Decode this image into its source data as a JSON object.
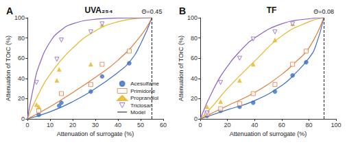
{
  "chart_data": [
    {
      "type": "scatter",
      "panel": "A",
      "title": "UVA₂₅₄",
      "x_label": "Attenuation of surrogate (%)",
      "y_label": "Attenuation of TOrC (%)",
      "xlim": [
        0,
        60
      ],
      "xticks": [
        0,
        10,
        20,
        30,
        40,
        50,
        60
      ],
      "ylim": [
        0,
        100
      ],
      "yticks": [
        0,
        20,
        40,
        60,
        80,
        100
      ],
      "grid": false,
      "legend": "lower right",
      "annotations": [
        {
          "text": "Θ=0.45",
          "x": 55
        }
      ],
      "series": [
        {
          "name": "Acesulfame",
          "color": "#3b6fc2",
          "marker": "circle",
          "x": [
            5,
            14,
            15,
            28,
            33,
            45
          ],
          "values": [
            4,
            13,
            16,
            27,
            42,
            55
          ],
          "model_x": [
            0,
            10,
            20,
            30,
            40,
            45,
            50,
            55
          ],
          "model_values": [
            0,
            7,
            17,
            30,
            46,
            56,
            74,
            100
          ]
        },
        {
          "name": "Primidone",
          "color": "#e07b39",
          "marker": "square_open",
          "x": [
            5,
            15,
            28,
            33,
            45
          ],
          "values": [
            8,
            25,
            34,
            54,
            67
          ],
          "model_x": [
            0,
            10,
            20,
            30,
            40,
            50,
            55
          ],
          "model_values": [
            0,
            12,
            26,
            41,
            58,
            82,
            100
          ]
        },
        {
          "name": "Propranolol",
          "color": "#e6b422",
          "marker": "triangle",
          "x": [
            4,
            5,
            13,
            14,
            28,
            33
          ],
          "values": [
            14,
            12,
            38,
            49,
            54,
            93
          ],
          "model_x": [
            0,
            5,
            10,
            20,
            30,
            40,
            50,
            55
          ],
          "model_values": [
            0,
            25,
            44,
            70,
            87,
            96,
            99.5,
            100
          ]
        },
        {
          "name": "Triclosan",
          "color": "#8a5cc6",
          "marker": "triangle_down_open",
          "x": [
            4,
            13,
            15,
            28,
            33
          ],
          "values": [
            36,
            59,
            78,
            86,
            94
          ],
          "model_x": [
            0,
            3,
            5,
            10,
            15,
            20,
            30,
            40,
            55
          ],
          "model_values": [
            0,
            35,
            52,
            76,
            88,
            94,
            98.5,
            99.7,
            100
          ]
        },
        {
          "name": "Model",
          "type": "line",
          "color": "#2b2b55"
        }
      ]
    },
    {
      "type": "scatter",
      "panel": "B",
      "title": "TF",
      "x_label": "Attenuation of surrogate (%)",
      "y_label": "Attenuation of TOrC (%)",
      "xlim": [
        0,
        100
      ],
      "xticks": [
        0,
        20,
        40,
        60,
        80,
        100
      ],
      "ylim": [
        0,
        100
      ],
      "yticks": [
        0,
        20,
        40,
        60,
        80,
        100
      ],
      "grid": false,
      "annotations": [
        {
          "text": "Θ=0.08",
          "x": 91
        }
      ],
      "series": [
        {
          "name": "Acesulfame",
          "color": "#3b6fc2",
          "marker": "circle",
          "x": [
            5,
            15,
            29,
            39,
            55,
            68,
            78
          ],
          "values": [
            3,
            8,
            12,
            16,
            27,
            43,
            56
          ],
          "model_x": [
            0,
            20,
            40,
            60,
            70,
            80,
            85,
            91
          ],
          "model_values": [
            0,
            9,
            18,
            33,
            45,
            60,
            72,
            100
          ]
        },
        {
          "name": "Primidone",
          "color": "#e07b39",
          "marker": "square_open",
          "x": [
            5,
            15,
            29,
            39,
            55,
            68,
            78
          ],
          "values": [
            5,
            10,
            15,
            25,
            34,
            54,
            67
          ],
          "model_x": [
            0,
            20,
            40,
            60,
            70,
            80,
            91
          ],
          "model_values": [
            0,
            13,
            26,
            44,
            56,
            70,
            100
          ]
        },
        {
          "name": "Propranolol",
          "color": "#e6b422",
          "marker": "triangle",
          "x": [
            5,
            15,
            29,
            39,
            55,
            68
          ],
          "values": [
            12,
            17,
            38,
            54,
            78,
            94
          ],
          "model_x": [
            0,
            10,
            20,
            40,
            60,
            80,
            91
          ],
          "model_values": [
            0,
            14,
            30,
            57,
            82,
            96,
            100
          ]
        },
        {
          "name": "Triclosan",
          "color": "#8a5cc6",
          "marker": "triangle_down_open",
          "x": [
            5,
            15,
            29,
            39,
            55,
            68
          ],
          "values": [
            6,
            36,
            60,
            79,
            86,
            94
          ],
          "model_x": [
            0,
            10,
            20,
            30,
            40,
            60,
            80,
            91
          ],
          "model_values": [
            0,
            30,
            52,
            68,
            80,
            94,
            99,
            100
          ]
        },
        {
          "name": "Model",
          "type": "line",
          "color": "#2b2b55"
        }
      ]
    }
  ]
}
